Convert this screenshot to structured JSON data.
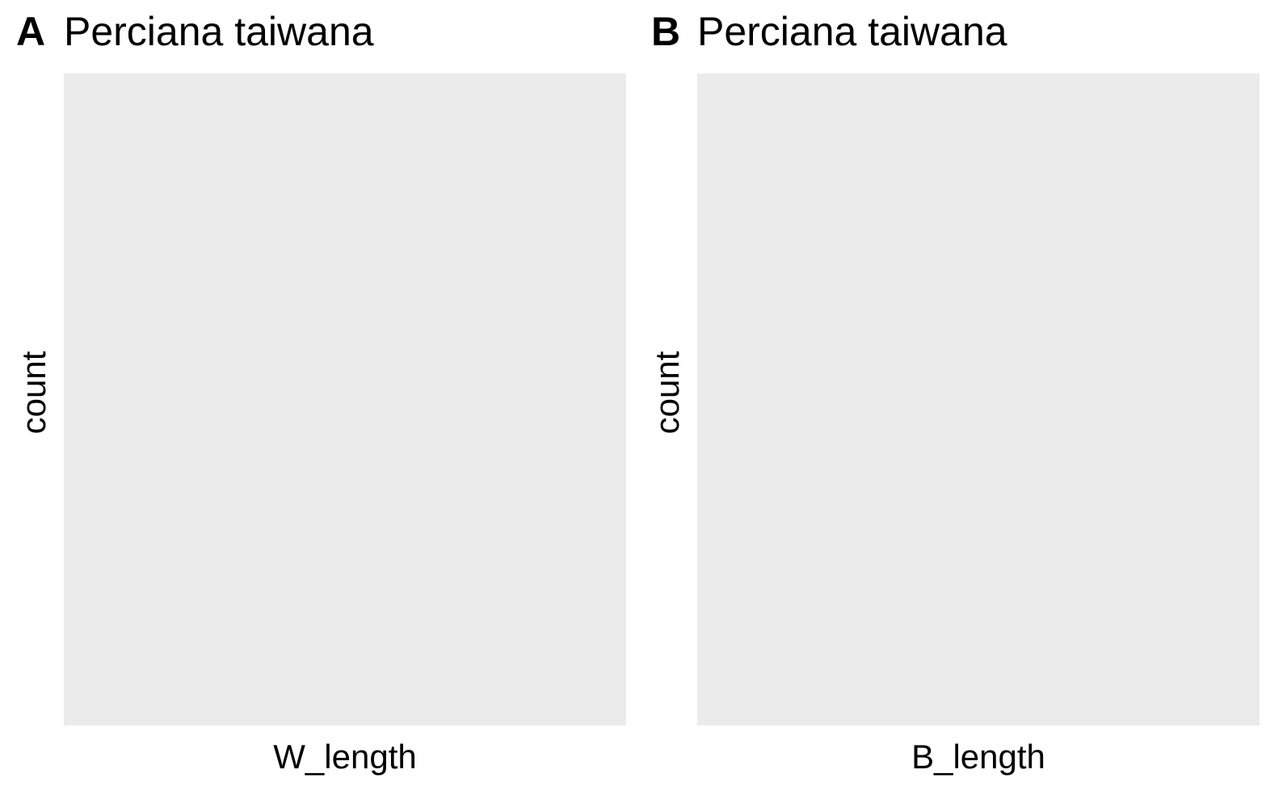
{
  "chart_data": [
    {
      "type": "bar",
      "panel_tag": "A",
      "title": "Perciana taiwana",
      "xlabel": "W_length",
      "ylabel": "count",
      "categories": [],
      "values": [],
      "grid": false,
      "background_color": "#ebebeb"
    },
    {
      "type": "bar",
      "panel_tag": "B",
      "title": "Perciana taiwana",
      "xlabel": "B_length",
      "ylabel": "count",
      "categories": [],
      "values": [],
      "grid": false,
      "background_color": "#ebebeb"
    }
  ]
}
